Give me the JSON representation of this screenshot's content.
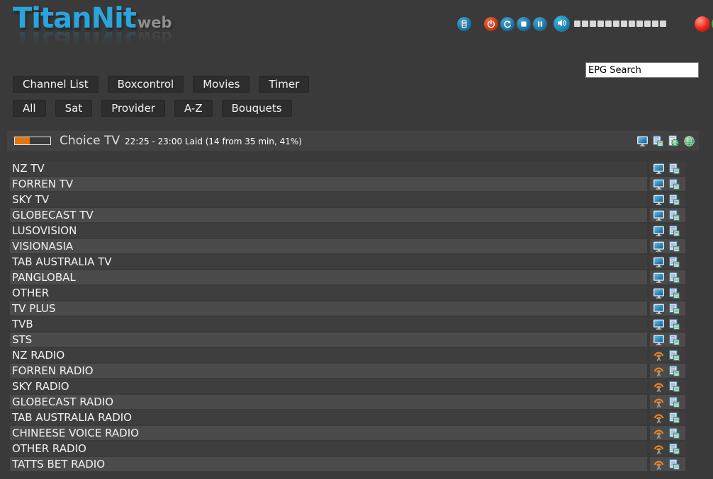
{
  "brand": {
    "name": "TitanNit",
    "suffix": "web"
  },
  "topbar": {
    "buttons": [
      {
        "label": "remote",
        "icon": "remote-icon"
      },
      {
        "label": "power",
        "icon": "power-icon"
      },
      {
        "label": "refresh",
        "icon": "refresh-icon"
      },
      {
        "label": "stop",
        "icon": "stop-icon"
      },
      {
        "label": "pause",
        "icon": "pause-icon"
      },
      {
        "label": "volume",
        "icon": "speaker-icon"
      }
    ],
    "volume_segments": 12,
    "record_indicator": {
      "icon": "record-icon",
      "color": "#ee2b1a"
    },
    "stream_indicator": {
      "icon": "antenna-icon",
      "color": "#49a84d"
    }
  },
  "search": {
    "value": "EPG Search"
  },
  "nav": {
    "items": [
      "Channel List",
      "Boxcontrol",
      "Movies",
      "Timer"
    ]
  },
  "filters": {
    "items": [
      "All",
      "Sat",
      "Provider",
      "A-Z",
      "Bouquets"
    ]
  },
  "now_playing": {
    "channel": "Choice TV",
    "info": "22:25 - 23:00 Laid (14 from 35 min, 41%)",
    "progress_percent": 41,
    "progress_color": "#e0760c",
    "actions": [
      "tv-icon",
      "copy-icon",
      "epg-doc-icon",
      "globe-icon"
    ]
  },
  "channel_list": {
    "items": [
      {
        "name": "NZ TV",
        "type": "tv"
      },
      {
        "name": "FORREN TV",
        "type": "tv"
      },
      {
        "name": "SKY TV",
        "type": "tv"
      },
      {
        "name": "GLOBECAST TV",
        "type": "tv"
      },
      {
        "name": "LUSOVISION",
        "type": "tv"
      },
      {
        "name": "VISIONASIA",
        "type": "tv"
      },
      {
        "name": "TAB AUSTRALIA TV",
        "type": "tv"
      },
      {
        "name": "PANGLOBAL",
        "type": "tv"
      },
      {
        "name": "OTHER",
        "type": "tv"
      },
      {
        "name": "TV PLUS",
        "type": "tv"
      },
      {
        "name": "TVB",
        "type": "tv"
      },
      {
        "name": "STS",
        "type": "tv"
      },
      {
        "name": "NZ RADIO",
        "type": "radio"
      },
      {
        "name": "FORREN RADIO",
        "type": "radio"
      },
      {
        "name": "SKY RADIO",
        "type": "radio"
      },
      {
        "name": "GLOBECAST RADIO",
        "type": "radio"
      },
      {
        "name": "TAB AUSTRALIA RADIO",
        "type": "radio"
      },
      {
        "name": "CHINEESE VOICE RADIO",
        "type": "radio"
      },
      {
        "name": "OTHER RADIO",
        "type": "radio"
      },
      {
        "name": "TATTS BET RADIO",
        "type": "radio"
      }
    ]
  },
  "colors": {
    "page_bg": "#3a3a3a",
    "accent_blue": "#2aa4da",
    "progress_orange": "#e0760c",
    "record_red": "#ee2b1a",
    "stream_green": "#49a84d"
  }
}
